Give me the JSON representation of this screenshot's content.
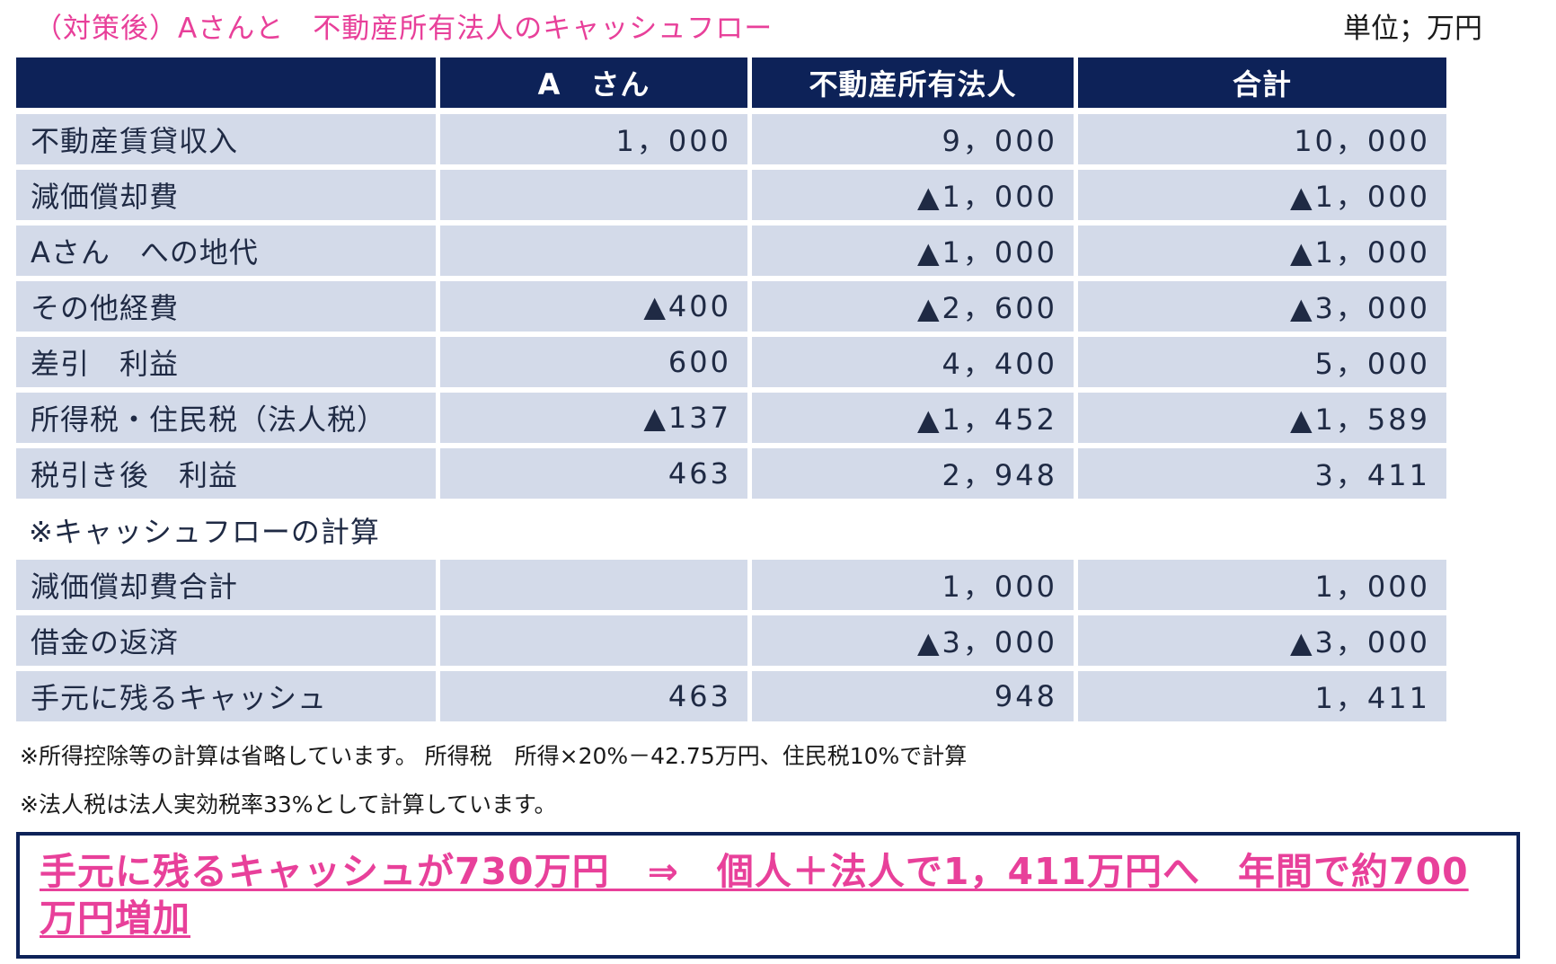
{
  "title": "（対策後）Aさんと　不動産所有法人のキャッシュフロー",
  "unit": "単位；万円",
  "table": {
    "headers": [
      "",
      "A　さん",
      "不動産所有法人",
      "合計"
    ],
    "rows": [
      {
        "label": "不動産賃貸収入",
        "a": "1，000",
        "corp": "9，000",
        "total": "10，000"
      },
      {
        "label": "減価償却費",
        "a": "",
        "corp": "▲1，000",
        "total": "▲1，000"
      },
      {
        "label": "Aさん　への地代",
        "a": "",
        "corp": "▲1，000",
        "total": "▲1，000"
      },
      {
        "label": "その他経費",
        "a": "▲400",
        "corp": "▲2，600",
        "total": "▲3，000"
      },
      {
        "label": "差引　利益",
        "a": "600",
        "corp": "4，400",
        "total": "5，000"
      },
      {
        "label": "所得税・住民税（法人税）",
        "a": "▲137",
        "corp": "▲1，452",
        "total": "▲1，589"
      },
      {
        "label": "税引き後　利益",
        "a": "463",
        "corp": "2，948",
        "total": "3，411"
      }
    ],
    "section_label": "※キャッシュフローの計算",
    "cf_rows": [
      {
        "label": "減価償却費合計",
        "a": "",
        "corp": "1，000",
        "total": "1，000"
      },
      {
        "label": "借金の返済",
        "a": "",
        "corp": "▲3，000",
        "total": "▲3，000"
      },
      {
        "label": "手元に残るキャッシュ",
        "a": "463",
        "corp": "948",
        "total": "1，411"
      }
    ]
  },
  "notes": [
    "※所得控除等の計算は省略しています。 所得税　所得×20%－42.75万円、住民税10%で計算",
    "※法人税は法人実効税率33%として計算しています。"
  ],
  "callout": "手元に残るキャッシュが730万円　⇒　個人＋法人で1，411万円へ　年間で約700万円増加",
  "colors": {
    "accent_pink": "#e8409a",
    "header_navy": "#0d2258",
    "row_bg": "#d3dae9"
  }
}
